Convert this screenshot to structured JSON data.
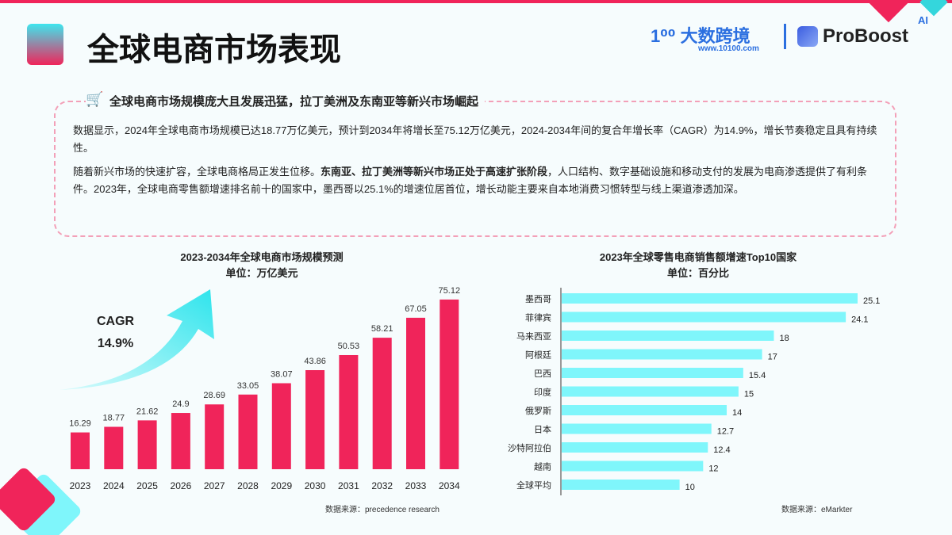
{
  "header": {
    "title": "全球电商市场表现",
    "logo_brand": "大数跨境",
    "logo_url": "www.10100.com",
    "logo2": "ProBoost",
    "logo2_badge": "AI"
  },
  "summary": {
    "heading": "全球电商市场规模庞大且发展迅猛，拉丁美洲及东南亚等新兴市场崛起",
    "p1": "数据显示，2024年全球电商市场规模已达18.77万亿美元，预计到2034年将增长至75.12万亿美元，2024-2034年间的复合年增长率（CAGR）为14.9%，增长节奏稳定且具有持续性。",
    "p2_a": "随着新兴市场的快速扩容，全球电商格局正发生位移。",
    "p2_bold": "东南亚、拉丁美洲等新兴市场正处于高速扩张阶段",
    "p2_b": "，人口结构、数字基础设施和移动支付的发展为电商渗透提供了有利条件。2023年，全球电商零售额增速排名前十的国家中，墨西哥以25.1%的增速位居首位，增长动能主要来自本地消费习惯转型与线上渠道渗透加深。"
  },
  "chart_data": [
    {
      "type": "bar",
      "title": "2023-2034年全球电商市场规模预测",
      "subtitle": "单位：万亿美元",
      "categories": [
        "2023",
        "2024",
        "2025",
        "2026",
        "2027",
        "2028",
        "2029",
        "2030",
        "2031",
        "2032",
        "2033",
        "2034"
      ],
      "values": [
        16.29,
        18.77,
        21.62,
        24.9,
        28.69,
        33.05,
        38.07,
        43.86,
        50.53,
        58.21,
        67.05,
        75.12
      ],
      "annotation": {
        "label": "CAGR",
        "value": "14.9%"
      },
      "source": "数据来源：precedence research",
      "color": "#f0245a"
    },
    {
      "type": "bar",
      "orientation": "horizontal",
      "title": "2023年全球零售电商销售额增速Top10国家",
      "subtitle": "单位：百分比",
      "categories": [
        "墨西哥",
        "菲律宾",
        "马来西亚",
        "阿根廷",
        "巴西",
        "印度",
        "俄罗斯",
        "日本",
        "沙特阿拉伯",
        "越南",
        "全球平均"
      ],
      "values": [
        25.1,
        24.1,
        18,
        17,
        15.4,
        15,
        14,
        12.7,
        12.4,
        12,
        10
      ],
      "source": "数据来源：eMarkter",
      "color": "#7ff6fb"
    }
  ]
}
